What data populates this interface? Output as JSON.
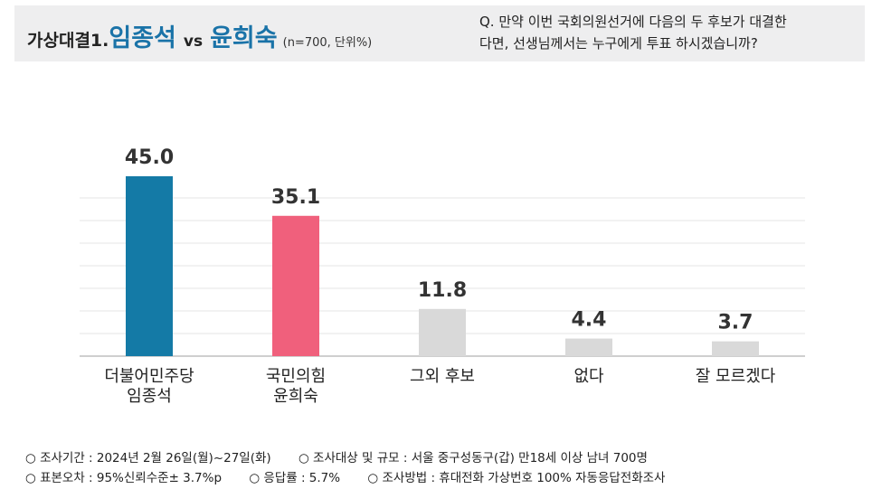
{
  "header": {
    "title_prefix": "가상대결1.",
    "candidate_a": "임종석",
    "vs": "vs",
    "candidate_b": "윤희숙",
    "note": "(n=700, 단위%)",
    "question_line1": "Q. 만약 이번 국회의원선거에 다음의 두 후보가 대결한",
    "question_line2": "다면, 선생님께서는 누구에게 투표 하시겠습니까?"
  },
  "colors": {
    "democratic": "#147aa6",
    "ppp": "#f0607c",
    "other": "#d9d9d9",
    "title_blue": "#1a73a8"
  },
  "chart_data": {
    "type": "bar",
    "categories": [
      [
        "더불어민주당",
        "임종석"
      ],
      [
        "국민의힘",
        "윤희숙"
      ],
      [
        "그외 후보"
      ],
      [
        "없다"
      ],
      [
        "잘 모르겠다"
      ]
    ],
    "values": [
      45.0,
      35.1,
      11.8,
      4.4,
      3.7
    ],
    "value_labels": [
      "45.0",
      "35.1",
      "11.8",
      "4.4",
      "3.7"
    ],
    "bar_colors": [
      "#147aa6",
      "#f0607c",
      "#d9d9d9",
      "#d9d9d9",
      "#d9d9d9"
    ],
    "ylim": [
      0,
      45
    ],
    "grid": true,
    "legend": "none"
  },
  "footer": {
    "row1": [
      "○ 조사기간 : 2024년 2월 26일(월)~27일(화)",
      "○ 조사대상 및 규모 : 서울 중구성동구(갑) 만18세 이상 남녀  700명"
    ],
    "row2": [
      "○ 표본오차 : 95%신뢰수준± 3.7%p",
      "○ 응답률 : 5.7%",
      "○ 조사방법 : 휴대전화 가상번호 100% 자동응답전화조사"
    ]
  }
}
